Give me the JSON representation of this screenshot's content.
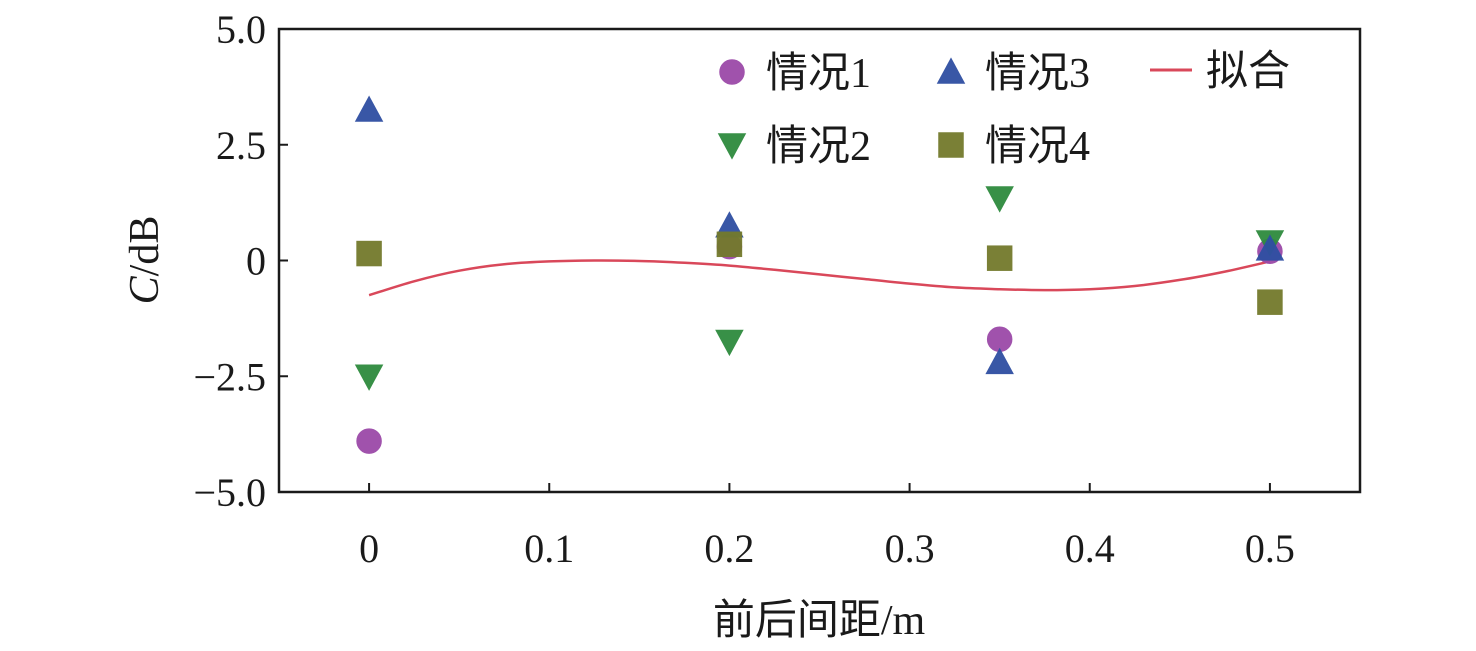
{
  "chart_data": {
    "type": "scatter",
    "xlabel": "前后间距/m",
    "ylabel_italic": "C",
    "ylabel_rest": "/dB",
    "xlim": [
      -0.05,
      0.55
    ],
    "ylim": [
      -5.0,
      5.0
    ],
    "x_ticks": [
      0,
      0.1,
      0.2,
      0.3,
      0.4,
      0.5
    ],
    "x_tick_labels": [
      "0",
      "0.1",
      "0.2",
      "0.3",
      "0.4",
      "0.5"
    ],
    "y_ticks": [
      5.0,
      2.5,
      0,
      -2.5,
      -5.0
    ],
    "y_tick_labels": [
      "5.0",
      "2.5",
      "0",
      "−2.5",
      "−5.0"
    ],
    "grid": false,
    "legend_placement": "top-right",
    "series": [
      {
        "name": "情况1",
        "marker": "circle",
        "color": "#9b49a8",
        "x": [
          0,
          0.2,
          0.35,
          0.5
        ],
        "y": [
          -3.9,
          0.3,
          -1.7,
          0.2
        ]
      },
      {
        "name": "情况2",
        "marker": "triangle-down",
        "color": "#2e8b3e",
        "x": [
          0,
          0.2,
          0.35,
          0.5
        ],
        "y": [
          -2.5,
          -1.75,
          1.35,
          0.4
        ]
      },
      {
        "name": "情况3",
        "marker": "triangle-up",
        "color": "#2f4fa2",
        "x": [
          0,
          0.2,
          0.35,
          0.5
        ],
        "y": [
          3.25,
          0.75,
          -2.2,
          0.25
        ]
      },
      {
        "name": "情况4",
        "marker": "square",
        "color": "#737a2c",
        "x": [
          0,
          0.2,
          0.35,
          0.5
        ],
        "y": [
          0.15,
          0.35,
          0.05,
          -0.9
        ]
      }
    ],
    "fit": {
      "name": "拟合",
      "color": "#d9485a",
      "x": [
        0,
        0.025,
        0.05,
        0.075,
        0.1,
        0.125,
        0.15,
        0.175,
        0.2,
        0.225,
        0.25,
        0.275,
        0.3,
        0.325,
        0.35,
        0.375,
        0.4,
        0.425,
        0.45,
        0.475,
        0.5
      ],
      "y": [
        -0.75,
        -0.45,
        -0.22,
        -0.08,
        -0.02,
        0.0,
        -0.01,
        -0.05,
        -0.11,
        -0.2,
        -0.3,
        -0.4,
        -0.5,
        -0.58,
        -0.62,
        -0.64,
        -0.62,
        -0.55,
        -0.42,
        -0.24,
        -0.02
      ]
    }
  }
}
